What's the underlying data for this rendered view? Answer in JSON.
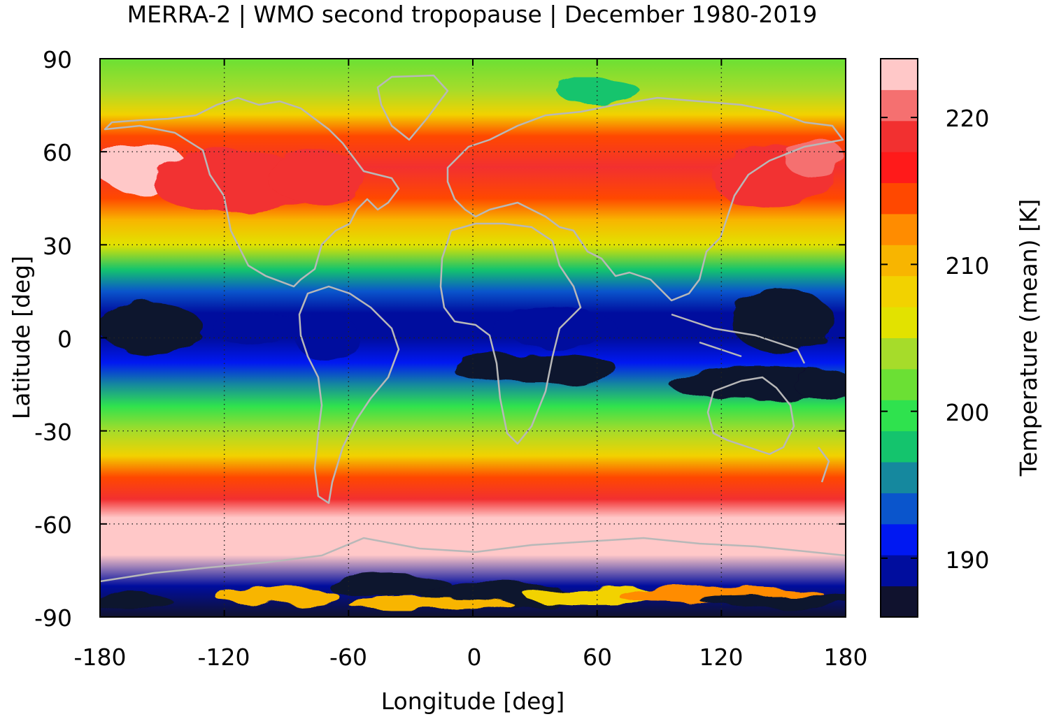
{
  "title": "MERRA-2 | WMO second tropopause | December 1980-2019",
  "chart_data": {
    "type": "heatmap",
    "title": "MERRA-2 | WMO second tropopause | December 1980-2019",
    "xlabel": "Longitude [deg]",
    "ylabel": "Latitude [deg]",
    "colorbar_label": "Temperature (mean) [K]",
    "xlim": [
      -180,
      180
    ],
    "ylim": [
      -90,
      90
    ],
    "x_ticks": [
      -180,
      -120,
      -60,
      0,
      60,
      120,
      180
    ],
    "x_tick_labels": [
      "-180",
      "-120",
      "-60",
      "0",
      "60",
      "120",
      "180"
    ],
    "y_ticks": [
      90,
      60,
      30,
      0,
      -30,
      -60,
      -90
    ],
    "y_tick_labels": [
      "90",
      "60",
      "30",
      "0",
      "-30",
      "-60",
      "-90"
    ],
    "grid": true,
    "colorbar_ticks": [
      190,
      200,
      210,
      220
    ],
    "colorbar_tick_labels": [
      "190",
      "200",
      "210",
      "220"
    ],
    "colorbar_range": [
      186,
      224
    ],
    "colorbar_colors": [
      "#10122e",
      "#000d9e",
      "#0018f2",
      "#0a55cc",
      "#15889e",
      "#14c46d",
      "#2fe24e",
      "#6be034",
      "#a6dc2a",
      "#e2e200",
      "#f2d200",
      "#f8b500",
      "#ff8c00",
      "#ff4800",
      "#ff1a1a",
      "#f23030",
      "#f57070",
      "#ffc8c8"
    ],
    "zonal_temperature_profile": {
      "latitudes": [
        90,
        80,
        72,
        65,
        55,
        45,
        38,
        30,
        22,
        15,
        8,
        0,
        -8,
        -15,
        -22,
        -30,
        -38,
        -45,
        -52,
        -58,
        -70,
        -80,
        -90
      ],
      "values_K": [
        202,
        204,
        208,
        214,
        218,
        215,
        211,
        205,
        198,
        193,
        190,
        189,
        191,
        195,
        199,
        204,
        209,
        214,
        219,
        223,
        223,
        190,
        188
      ]
    },
    "coastline_color": "#b8b8b8"
  }
}
